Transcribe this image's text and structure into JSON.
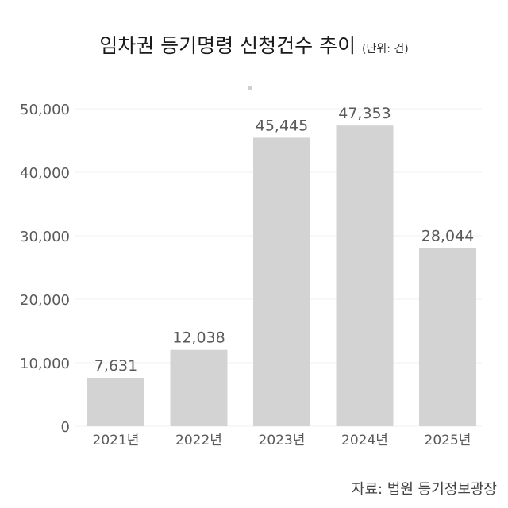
{
  "chart_data": {
    "type": "bar",
    "title": "임차권 등기명령 신청건수 추이",
    "subtitle": "(단위: 건)",
    "categories": [
      "2021년",
      "2022년",
      "2023년",
      "2024년",
      "2025년"
    ],
    "values": [
      7631,
      12038,
      45445,
      47353,
      28044
    ],
    "data_labels": [
      "7,631",
      "12,038",
      "45,445",
      "47,353",
      "28,044"
    ],
    "ylim": [
      0,
      50000
    ],
    "yticks": [
      "0",
      "10,000",
      "20,000",
      "30,000",
      "40,000",
      "50,000"
    ],
    "grid": true,
    "xlabel": "",
    "ylabel": "",
    "source": "자료: 법원 등기정보광장",
    "colors": {
      "bar": "#d3d3d3",
      "text": "#5a5a5a",
      "grid": "#f0f0f0"
    }
  }
}
